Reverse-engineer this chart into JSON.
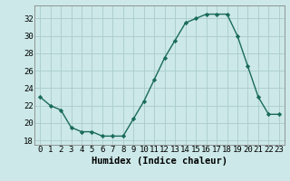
{
  "x": [
    0,
    1,
    2,
    3,
    4,
    5,
    6,
    7,
    8,
    9,
    10,
    11,
    12,
    13,
    14,
    15,
    16,
    17,
    18,
    19,
    20,
    21,
    22,
    23
  ],
  "y": [
    23.0,
    22.0,
    21.5,
    19.5,
    19.0,
    19.0,
    18.5,
    18.5,
    18.5,
    20.5,
    22.5,
    25.0,
    27.5,
    29.5,
    31.5,
    32.0,
    32.5,
    32.5,
    32.5,
    30.0,
    26.5,
    23.0,
    21.0,
    21.0
  ],
  "xlabel": "Humidex (Indice chaleur)",
  "ylim": [
    17.5,
    33.5
  ],
  "yticks": [
    18,
    20,
    22,
    24,
    26,
    28,
    30,
    32
  ],
  "xticks": [
    0,
    1,
    2,
    3,
    4,
    5,
    6,
    7,
    8,
    9,
    10,
    11,
    12,
    13,
    14,
    15,
    16,
    17,
    18,
    19,
    20,
    21,
    22,
    23
  ],
  "xlim": [
    -0.5,
    23.5
  ],
  "line_color": "#1a6b5a",
  "marker": "D",
  "marker_size": 2.2,
  "bg_color": "#cce8e8",
  "grid_color": "#aacccc",
  "xlabel_fontsize": 7.5,
  "tick_fontsize": 6.5,
  "line_width": 1.0
}
